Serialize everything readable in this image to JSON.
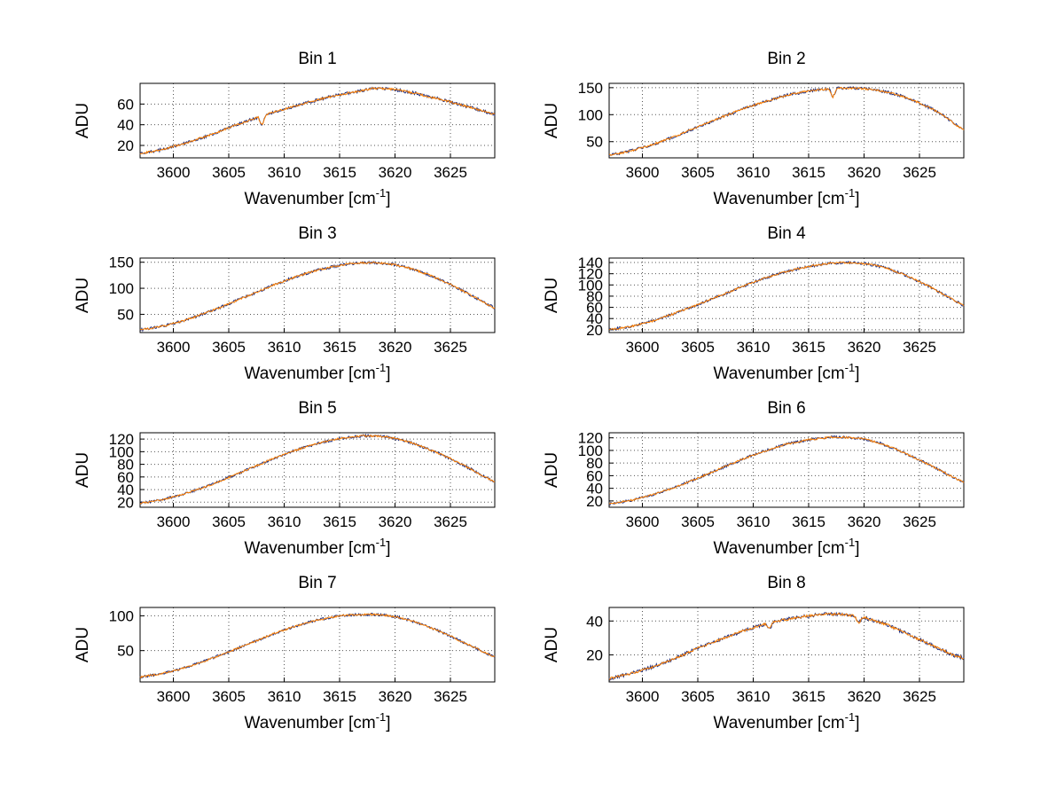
{
  "figure": {
    "background": "#ffffff",
    "xlabel": {
      "pre": "Wavenumber [cm",
      "sup": "-1",
      "post": "]"
    },
    "ylabel": "ADU",
    "grid": true,
    "grid_color": "#555555",
    "axis_color": "#000000",
    "series_colors": {
      "under": "#203080",
      "main": "#ff8000"
    }
  },
  "chart_data": [
    {
      "type": "line",
      "title": "Bin 1",
      "ylabel": "ADU",
      "xlim": [
        3597,
        3629
      ],
      "xticks": [
        3600,
        3605,
        3610,
        3615,
        3620,
        3625
      ],
      "ylim": [
        8,
        80
      ],
      "yticks": [
        20,
        40,
        60
      ],
      "noise": 1.0,
      "spikes": [
        {
          "x": 3608,
          "depth": 9
        }
      ],
      "points": [
        [
          3597,
          12
        ],
        [
          3599,
          16
        ],
        [
          3601,
          22
        ],
        [
          3603,
          29
        ],
        [
          3605,
          37
        ],
        [
          3607,
          45
        ],
        [
          3609,
          52
        ],
        [
          3611,
          58
        ],
        [
          3613,
          64
        ],
        [
          3615,
          69
        ],
        [
          3617,
          73
        ],
        [
          3618,
          75
        ],
        [
          3619,
          75
        ],
        [
          3620,
          74
        ],
        [
          3621,
          72
        ],
        [
          3622,
          70
        ],
        [
          3623,
          67
        ],
        [
          3624,
          65
        ],
        [
          3625,
          62
        ],
        [
          3627,
          56
        ],
        [
          3629,
          50
        ]
      ]
    },
    {
      "type": "line",
      "title": "Bin 2",
      "ylabel": "ADU",
      "xlim": [
        3597,
        3629
      ],
      "xticks": [
        3600,
        3605,
        3610,
        3615,
        3620,
        3625
      ],
      "ylim": [
        20,
        158
      ],
      "yticks": [
        50,
        100,
        150
      ],
      "noise": 1.8,
      "spikes": [
        {
          "x": 3617.2,
          "depth": 16
        }
      ],
      "points": [
        [
          3597,
          25
        ],
        [
          3599,
          33
        ],
        [
          3601,
          45
        ],
        [
          3603,
          60
        ],
        [
          3605,
          77
        ],
        [
          3607,
          94
        ],
        [
          3609,
          110
        ],
        [
          3611,
          124
        ],
        [
          3613,
          136
        ],
        [
          3615,
          144
        ],
        [
          3616,
          146
        ],
        [
          3617,
          148
        ],
        [
          3618,
          149
        ],
        [
          3619,
          149
        ],
        [
          3620,
          148
        ],
        [
          3621,
          146
        ],
        [
          3622,
          142
        ],
        [
          3623,
          137
        ],
        [
          3624,
          130
        ],
        [
          3625,
          122
        ],
        [
          3626,
          112
        ],
        [
          3627,
          101
        ],
        [
          3628,
          85
        ],
        [
          3629,
          72
        ]
      ]
    },
    {
      "type": "line",
      "title": "Bin 3",
      "ylabel": "ADU",
      "xlim": [
        3597,
        3629
      ],
      "xticks": [
        3600,
        3605,
        3610,
        3615,
        3620,
        3625
      ],
      "ylim": [
        15,
        158
      ],
      "yticks": [
        50,
        100,
        150
      ],
      "noise": 1.8,
      "spikes": [],
      "points": [
        [
          3597,
          20
        ],
        [
          3599,
          27
        ],
        [
          3601,
          38
        ],
        [
          3603,
          53
        ],
        [
          3605,
          70
        ],
        [
          3607,
          88
        ],
        [
          3609,
          106
        ],
        [
          3611,
          122
        ],
        [
          3613,
          135
        ],
        [
          3615,
          144
        ],
        [
          3616,
          147
        ],
        [
          3617,
          149
        ],
        [
          3618,
          149
        ],
        [
          3619,
          148
        ],
        [
          3620,
          145
        ],
        [
          3621,
          140
        ],
        [
          3622,
          134
        ],
        [
          3623,
          126
        ],
        [
          3624,
          117
        ],
        [
          3625,
          107
        ],
        [
          3626,
          96
        ],
        [
          3627,
          85
        ],
        [
          3628,
          73
        ],
        [
          3629,
          62
        ]
      ]
    },
    {
      "type": "line",
      "title": "Bin 4",
      "ylabel": "ADU",
      "xlim": [
        3597,
        3629
      ],
      "xticks": [
        3600,
        3605,
        3610,
        3615,
        3620,
        3625
      ],
      "ylim": [
        15,
        148
      ],
      "yticks": [
        20,
        40,
        60,
        80,
        100,
        120,
        140
      ],
      "noise": 1.6,
      "spikes": [],
      "points": [
        [
          3597,
          20
        ],
        [
          3599,
          26
        ],
        [
          3601,
          36
        ],
        [
          3603,
          50
        ],
        [
          3605,
          65
        ],
        [
          3607,
          81
        ],
        [
          3609,
          97
        ],
        [
          3611,
          112
        ],
        [
          3613,
          124
        ],
        [
          3615,
          133
        ],
        [
          3616,
          136
        ],
        [
          3617,
          139
        ],
        [
          3618,
          140
        ],
        [
          3619,
          140
        ],
        [
          3620,
          138
        ],
        [
          3621,
          135
        ],
        [
          3622,
          130
        ],
        [
          3623,
          123
        ],
        [
          3624,
          115
        ],
        [
          3625,
          106
        ],
        [
          3626,
          96
        ],
        [
          3627,
          85
        ],
        [
          3628,
          74
        ],
        [
          3629,
          63
        ]
      ]
    },
    {
      "type": "line",
      "title": "Bin 5",
      "ylabel": "ADU",
      "xlim": [
        3597,
        3629
      ],
      "xticks": [
        3600,
        3605,
        3610,
        3615,
        3620,
        3625
      ],
      "ylim": [
        12,
        130
      ],
      "yticks": [
        20,
        40,
        60,
        80,
        100,
        120
      ],
      "noise": 1.4,
      "spikes": [],
      "points": [
        [
          3597,
          18
        ],
        [
          3599,
          24
        ],
        [
          3601,
          33
        ],
        [
          3603,
          45
        ],
        [
          3605,
          59
        ],
        [
          3607,
          74
        ],
        [
          3609,
          89
        ],
        [
          3611,
          102
        ],
        [
          3613,
          113
        ],
        [
          3615,
          121
        ],
        [
          3616,
          123
        ],
        [
          3617,
          125
        ],
        [
          3618,
          125
        ],
        [
          3619,
          124
        ],
        [
          3620,
          121
        ],
        [
          3621,
          117
        ],
        [
          3622,
          111
        ],
        [
          3623,
          104
        ],
        [
          3624,
          97
        ],
        [
          3625,
          89
        ],
        [
          3626,
          80
        ],
        [
          3627,
          71
        ],
        [
          3628,
          61
        ],
        [
          3629,
          52
        ]
      ]
    },
    {
      "type": "line",
      "title": "Bin 6",
      "ylabel": "ADU",
      "xlim": [
        3597,
        3629
      ],
      "xticks": [
        3600,
        3605,
        3610,
        3615,
        3620,
        3625
      ],
      "ylim": [
        10,
        128
      ],
      "yticks": [
        20,
        40,
        60,
        80,
        100,
        120
      ],
      "noise": 1.4,
      "spikes": [],
      "points": [
        [
          3597,
          15
        ],
        [
          3599,
          21
        ],
        [
          3601,
          30
        ],
        [
          3603,
          42
        ],
        [
          3605,
          56
        ],
        [
          3607,
          71
        ],
        [
          3609,
          86
        ],
        [
          3611,
          99
        ],
        [
          3613,
          110
        ],
        [
          3615,
          117
        ],
        [
          3616,
          119
        ],
        [
          3617,
          121
        ],
        [
          3618,
          121
        ],
        [
          3619,
          120
        ],
        [
          3620,
          118
        ],
        [
          3621,
          114
        ],
        [
          3622,
          108
        ],
        [
          3623,
          101
        ],
        [
          3624,
          93
        ],
        [
          3625,
          85
        ],
        [
          3626,
          76
        ],
        [
          3627,
          67
        ],
        [
          3628,
          58
        ],
        [
          3629,
          50
        ]
      ]
    },
    {
      "type": "line",
      "title": "Bin 7",
      "ylabel": "ADU",
      "xlim": [
        3597,
        3629
      ],
      "xticks": [
        3600,
        3605,
        3610,
        3615,
        3620,
        3625
      ],
      "ylim": [
        5,
        112
      ],
      "yticks": [
        50,
        100
      ],
      "noise": 1.2,
      "spikes": [],
      "points": [
        [
          3597,
          12
        ],
        [
          3599,
          17
        ],
        [
          3601,
          25
        ],
        [
          3603,
          36
        ],
        [
          3605,
          48
        ],
        [
          3607,
          61
        ],
        [
          3609,
          74
        ],
        [
          3611,
          85
        ],
        [
          3613,
          94
        ],
        [
          3615,
          100
        ],
        [
          3616,
          101
        ],
        [
          3617,
          102
        ],
        [
          3618,
          102
        ],
        [
          3619,
          101
        ],
        [
          3620,
          99
        ],
        [
          3621,
          95
        ],
        [
          3622,
          90
        ],
        [
          3623,
          84
        ],
        [
          3624,
          78
        ],
        [
          3625,
          71
        ],
        [
          3626,
          63
        ],
        [
          3627,
          56
        ],
        [
          3628,
          48
        ],
        [
          3629,
          41
        ]
      ]
    },
    {
      "type": "line",
      "title": "Bin 8",
      "ylabel": "ADU",
      "xlim": [
        3597,
        3629
      ],
      "xticks": [
        3600,
        3605,
        3610,
        3615,
        3620,
        3625
      ],
      "ylim": [
        4,
        48
      ],
      "yticks": [
        20,
        40
      ],
      "noise": 0.7,
      "spikes": [
        {
          "x": 3611.5,
          "depth": 3
        },
        {
          "x": 3619.5,
          "depth": 4
        }
      ],
      "points": [
        [
          3597,
          6
        ],
        [
          3599,
          9
        ],
        [
          3601,
          13
        ],
        [
          3603,
          18
        ],
        [
          3605,
          24
        ],
        [
          3607,
          29
        ],
        [
          3609,
          34
        ],
        [
          3611,
          38
        ],
        [
          3613,
          41
        ],
        [
          3615,
          43
        ],
        [
          3616,
          44
        ],
        [
          3617,
          44
        ],
        [
          3618,
          44
        ],
        [
          3619,
          43
        ],
        [
          3620,
          42
        ],
        [
          3621,
          40
        ],
        [
          3622,
          38
        ],
        [
          3623,
          35
        ],
        [
          3624,
          32
        ],
        [
          3625,
          29
        ],
        [
          3626,
          26
        ],
        [
          3627,
          23
        ],
        [
          3628,
          20
        ],
        [
          3629,
          18
        ]
      ]
    }
  ]
}
